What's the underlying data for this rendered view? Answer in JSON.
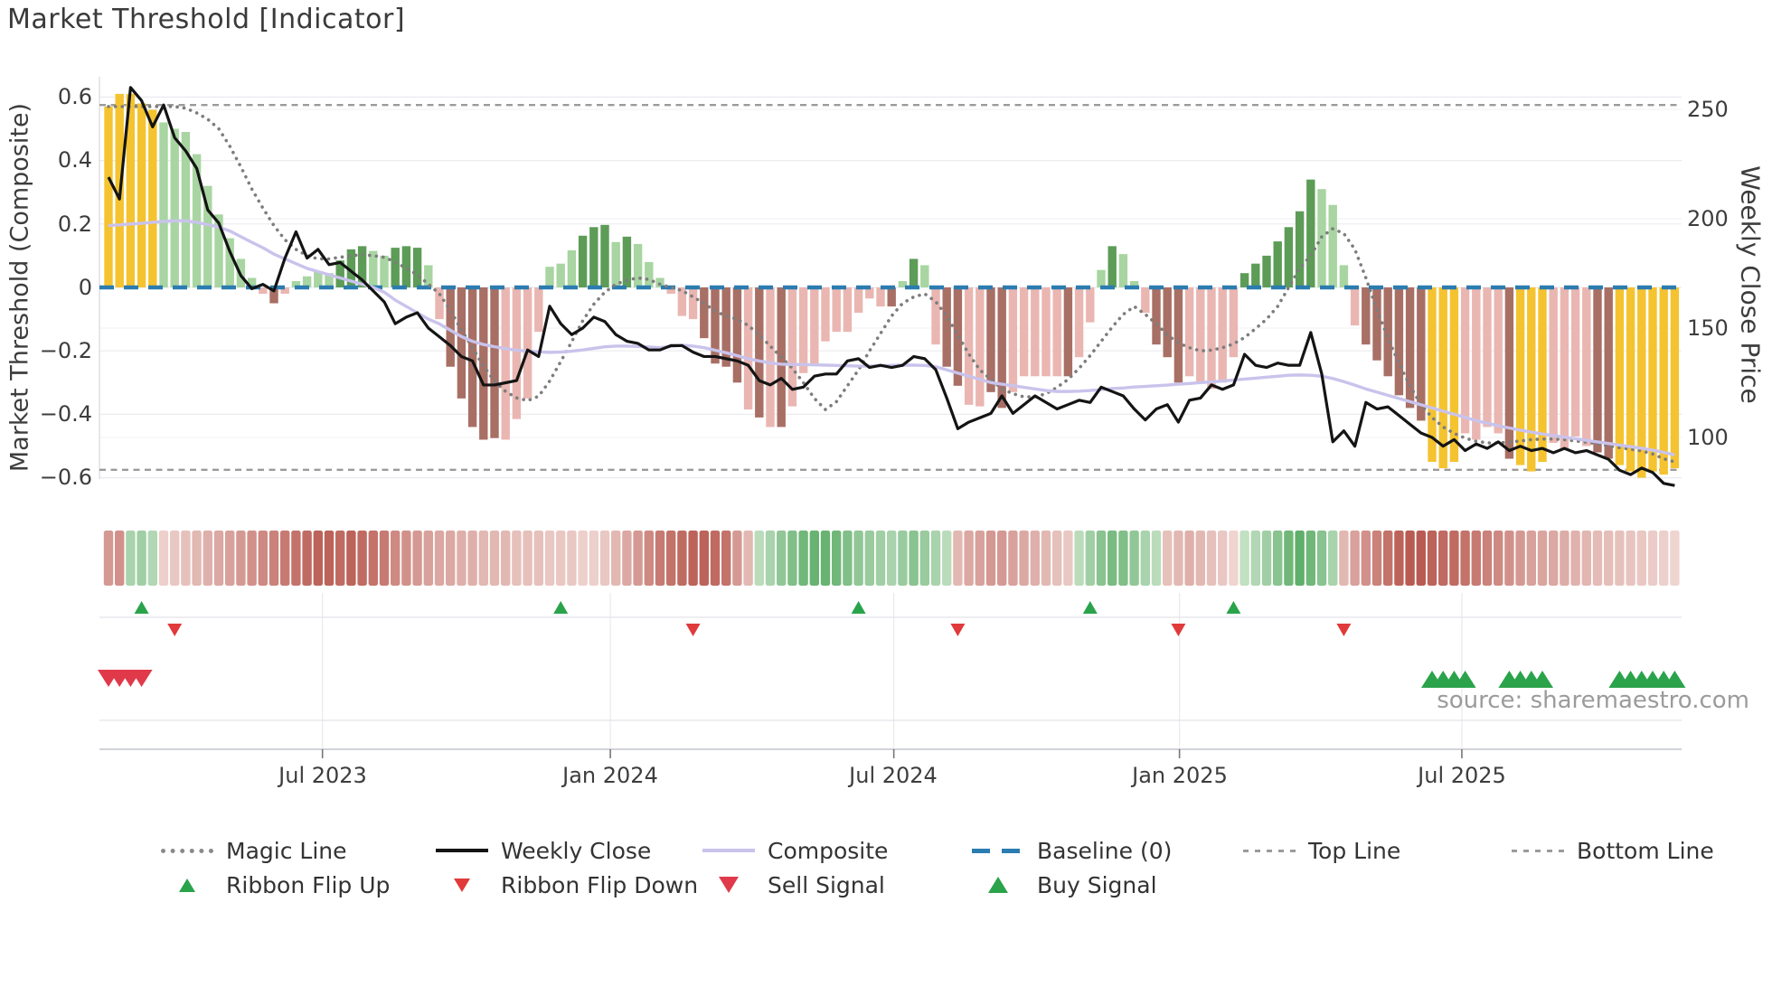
{
  "title": "Market Threshold [Indicator]",
  "source_note": "source: sharemaestro.com",
  "axes": {
    "left_label": "Market Threshold (Composite)",
    "right_label": "Weekly Close Price",
    "left_ticks": [
      "0.6",
      "0.4",
      "0.2",
      "0",
      "−0.2",
      "−0.4",
      "−0.6"
    ],
    "right_ticks": [
      "250",
      "200",
      "150",
      "100"
    ],
    "x_ticks": [
      "Jul 2023",
      "Jan 2024",
      "Jul 2024",
      "Jan 2025",
      "Jul 2025"
    ]
  },
  "legend": {
    "items": [
      {
        "label": "Magic Line"
      },
      {
        "label": "Weekly Close"
      },
      {
        "label": "Composite"
      },
      {
        "label": "Baseline (0)"
      },
      {
        "label": "Top Line"
      },
      {
        "label": "Bottom Line"
      },
      {
        "label": "Ribbon Flip Up"
      },
      {
        "label": "Ribbon Flip Down"
      },
      {
        "label": "Sell Signal"
      },
      {
        "label": "Buy Signal"
      }
    ]
  },
  "colors": {
    "bar_yellow": "#f4c32f",
    "bar_green_dark": "#5d9c57",
    "bar_green_light": "#a8d5a1",
    "bar_red_dark": "#a86f65",
    "bar_red_light": "#eab6b1",
    "close_line": "#141414",
    "composite_line": "#c9c3ec",
    "magic_line": "#7d7d7d",
    "baseline": "#2b7cb0",
    "top_bottom_line": "#9b9b9b",
    "flip_up": "#2aa34b",
    "flip_down": "#e03a3a",
    "buy": "#2aa34b",
    "sell": "#e03a4a",
    "ribbon_green_dark": "#409e4e",
    "ribbon_green_light": "#e2f0df",
    "ribbon_red_dark": "#b24c42",
    "ribbon_red_light": "#f7e6e3"
  },
  "chart_data": {
    "type": "mixed",
    "description": "Weekly composite market-threshold indicator bars (left axis) with weekly close price (right axis), magic line, composite line, baseline, top/bottom threshold lines, momentum ribbon strip and buy/sell/ribbon-flip signal markers.",
    "weeks": 143,
    "baseline": 0,
    "top_line": 0.575,
    "bottom_line": -0.575,
    "ylim_left": [
      -0.66,
      0.66
    ],
    "ylim_right": [
      70,
      265
    ],
    "x_tick_weeks": [
      19.4,
      45.5,
      71.2,
      97.1,
      122.7
    ],
    "bar_color_legend": {
      "Y": "yellow extreme",
      "G": "green dark",
      "g": "green light",
      "R": "red dark",
      "r": "red light"
    },
    "bars": [
      [
        0.57,
        "Y"
      ],
      [
        0.61,
        "Y"
      ],
      [
        0.61,
        "Y"
      ],
      [
        0.58,
        "Y"
      ],
      [
        0.56,
        "Y"
      ],
      [
        0.52,
        "g"
      ],
      [
        0.5,
        "g"
      ],
      [
        0.49,
        "g"
      ],
      [
        0.42,
        "g"
      ],
      [
        0.32,
        "g"
      ],
      [
        0.23,
        "g"
      ],
      [
        0.155,
        "g"
      ],
      [
        0.09,
        "g"
      ],
      [
        0.03,
        "g"
      ],
      [
        -0.02,
        "r"
      ],
      [
        -0.05,
        "R"
      ],
      [
        -0.02,
        "r"
      ],
      [
        0.02,
        "g"
      ],
      [
        0.035,
        "g"
      ],
      [
        0.05,
        "g"
      ],
      [
        0.045,
        "g"
      ],
      [
        0.085,
        "G"
      ],
      [
        0.12,
        "G"
      ],
      [
        0.13,
        "G"
      ],
      [
        0.115,
        "g"
      ],
      [
        0.1,
        "g"
      ],
      [
        0.125,
        "G"
      ],
      [
        0.13,
        "G"
      ],
      [
        0.125,
        "G"
      ],
      [
        0.07,
        "g"
      ],
      [
        -0.1,
        "r"
      ],
      [
        -0.25,
        "R"
      ],
      [
        -0.35,
        "R"
      ],
      [
        -0.44,
        "R"
      ],
      [
        -0.48,
        "R"
      ],
      [
        -0.475,
        "R"
      ],
      [
        -0.48,
        "r"
      ],
      [
        -0.415,
        "r"
      ],
      [
        -0.35,
        "r"
      ],
      [
        -0.14,
        "r"
      ],
      [
        0.065,
        "g"
      ],
      [
        0.075,
        "g"
      ],
      [
        0.117,
        "g"
      ],
      [
        0.163,
        "G"
      ],
      [
        0.19,
        "G"
      ],
      [
        0.197,
        "G"
      ],
      [
        0.143,
        "g"
      ],
      [
        0.16,
        "G"
      ],
      [
        0.137,
        "g"
      ],
      [
        0.08,
        "g"
      ],
      [
        0.03,
        "g"
      ],
      [
        -0.02,
        "r"
      ],
      [
        -0.09,
        "r"
      ],
      [
        -0.1,
        "r"
      ],
      [
        -0.16,
        "R"
      ],
      [
        -0.24,
        "R"
      ],
      [
        -0.25,
        "R"
      ],
      [
        -0.3,
        "R"
      ],
      [
        -0.385,
        "r"
      ],
      [
        -0.41,
        "R"
      ],
      [
        -0.44,
        "r"
      ],
      [
        -0.44,
        "R"
      ],
      [
        -0.375,
        "r"
      ],
      [
        -0.27,
        "r"
      ],
      [
        -0.24,
        "r"
      ],
      [
        -0.17,
        "r"
      ],
      [
        -0.14,
        "r"
      ],
      [
        -0.14,
        "r"
      ],
      [
        -0.08,
        "r"
      ],
      [
        -0.035,
        "r"
      ],
      [
        -0.06,
        "r"
      ],
      [
        -0.06,
        "R"
      ],
      [
        0.02,
        "g"
      ],
      [
        0.09,
        "G"
      ],
      [
        0.07,
        "g"
      ],
      [
        -0.18,
        "r"
      ],
      [
        -0.25,
        "R"
      ],
      [
        -0.31,
        "R"
      ],
      [
        -0.37,
        "r"
      ],
      [
        -0.375,
        "r"
      ],
      [
        -0.33,
        "R"
      ],
      [
        -0.38,
        "R"
      ],
      [
        -0.33,
        "r"
      ],
      [
        -0.28,
        "r"
      ],
      [
        -0.28,
        "r"
      ],
      [
        -0.28,
        "r"
      ],
      [
        -0.28,
        "r"
      ],
      [
        -0.28,
        "R"
      ],
      [
        -0.22,
        "r"
      ],
      [
        -0.11,
        "r"
      ],
      [
        0.055,
        "g"
      ],
      [
        0.13,
        "G"
      ],
      [
        0.105,
        "g"
      ],
      [
        0.02,
        "g"
      ],
      [
        -0.08,
        "r"
      ],
      [
        -0.18,
        "R"
      ],
      [
        -0.22,
        "R"
      ],
      [
        -0.3,
        "R"
      ],
      [
        -0.28,
        "r"
      ],
      [
        -0.3,
        "r"
      ],
      [
        -0.32,
        "r"
      ],
      [
        -0.3,
        "r"
      ],
      [
        -0.22,
        "r"
      ],
      [
        0.045,
        "G"
      ],
      [
        0.075,
        "G"
      ],
      [
        0.1,
        "G"
      ],
      [
        0.145,
        "G"
      ],
      [
        0.19,
        "G"
      ],
      [
        0.24,
        "G"
      ],
      [
        0.34,
        "G"
      ],
      [
        0.31,
        "g"
      ],
      [
        0.26,
        "g"
      ],
      [
        0.07,
        "g"
      ],
      [
        -0.12,
        "r"
      ],
      [
        -0.18,
        "R"
      ],
      [
        -0.23,
        "R"
      ],
      [
        -0.28,
        "R"
      ],
      [
        -0.34,
        "R"
      ],
      [
        -0.38,
        "R"
      ],
      [
        -0.42,
        "R"
      ],
      [
        -0.55,
        "Y"
      ],
      [
        -0.57,
        "Y"
      ],
      [
        -0.55,
        "Y"
      ],
      [
        -0.46,
        "r"
      ],
      [
        -0.48,
        "r"
      ],
      [
        -0.44,
        "r"
      ],
      [
        -0.46,
        "r"
      ],
      [
        -0.54,
        "R"
      ],
      [
        -0.56,
        "Y"
      ],
      [
        -0.58,
        "Y"
      ],
      [
        -0.55,
        "Y"
      ],
      [
        -0.49,
        "r"
      ],
      [
        -0.51,
        "r"
      ],
      [
        -0.47,
        "r"
      ],
      [
        -0.5,
        "r"
      ],
      [
        -0.52,
        "R"
      ],
      [
        -0.54,
        "R"
      ],
      [
        -0.56,
        "Y"
      ],
      [
        -0.58,
        "Y"
      ],
      [
        -0.6,
        "Y"
      ],
      [
        -0.58,
        "Y"
      ],
      [
        -0.59,
        "Y"
      ],
      [
        -0.57,
        "Y"
      ]
    ],
    "weekly_close": [
      219,
      209,
      260,
      254,
      242,
      252,
      237,
      231,
      223,
      204,
      198,
      185,
      174,
      168,
      170,
      167,
      182,
      194,
      182,
      186,
      179,
      180,
      176,
      172,
      167,
      162,
      152,
      155,
      157,
      150,
      146,
      142,
      137,
      135,
      124,
      124,
      125,
      126,
      140,
      137,
      160,
      152,
      147,
      150,
      155,
      153,
      147,
      144,
      143,
      140,
      140,
      142,
      142,
      139,
      137,
      137,
      136,
      135,
      133,
      126,
      124,
      127,
      122,
      123,
      128,
      129,
      129,
      135,
      136,
      132,
      133,
      132,
      133,
      137,
      136,
      131,
      118,
      104,
      107,
      109,
      111,
      119,
      111,
      115,
      119,
      116,
      113,
      115,
      117,
      116,
      123,
      121,
      119,
      113,
      108,
      113,
      115,
      107,
      117,
      118,
      124,
      122,
      124,
      138,
      133,
      132,
      134,
      133,
      133,
      148,
      129,
      98,
      103,
      96,
      116,
      113,
      114,
      110,
      106,
      102,
      100,
      96,
      99,
      94,
      97,
      95,
      98,
      94,
      96,
      94,
      95,
      93,
      95,
      93,
      94,
      92,
      90,
      85,
      83,
      86,
      84,
      79,
      78
    ],
    "magic": [
      0.57,
      0.57,
      0.57,
      0.57,
      0.57,
      0.57,
      0.57,
      0.565,
      0.55,
      0.53,
      0.5,
      0.445,
      0.38,
      0.31,
      0.25,
      0.195,
      0.15,
      0.12,
      0.1,
      0.09,
      0.09,
      0.095,
      0.1,
      0.103,
      0.1,
      0.095,
      0.08,
      0.06,
      0.04,
      0.01,
      -0.02,
      -0.073,
      -0.134,
      -0.19,
      -0.248,
      -0.295,
      -0.328,
      -0.348,
      -0.357,
      -0.343,
      -0.295,
      -0.234,
      -0.171,
      -0.105,
      -0.053,
      -0.015,
      0.01,
      0.023,
      0.03,
      0.025,
      0.01,
      0.0,
      -0.01,
      -0.03,
      -0.05,
      -0.075,
      -0.09,
      -0.1,
      -0.12,
      -0.15,
      -0.185,
      -0.22,
      -0.255,
      -0.3,
      -0.35,
      -0.385,
      -0.36,
      -0.31,
      -0.26,
      -0.2,
      -0.145,
      -0.09,
      -0.05,
      -0.03,
      -0.02,
      -0.045,
      -0.09,
      -0.15,
      -0.21,
      -0.26,
      -0.29,
      -0.32,
      -0.335,
      -0.345,
      -0.345,
      -0.335,
      -0.315,
      -0.29,
      -0.255,
      -0.215,
      -0.17,
      -0.125,
      -0.085,
      -0.06,
      -0.085,
      -0.115,
      -0.15,
      -0.175,
      -0.19,
      -0.2,
      -0.198,
      -0.19,
      -0.178,
      -0.158,
      -0.13,
      -0.1,
      -0.06,
      0.0,
      0.06,
      0.1,
      0.16,
      0.185,
      0.17,
      0.12,
      0.03,
      -0.07,
      -0.16,
      -0.24,
      -0.31,
      -0.37,
      -0.41,
      -0.44,
      -0.46,
      -0.475,
      -0.485,
      -0.49,
      -0.49,
      -0.488,
      -0.484,
      -0.48,
      -0.478,
      -0.478,
      -0.48,
      -0.484,
      -0.488,
      -0.493,
      -0.5,
      -0.505,
      -0.51,
      -0.515,
      -0.525,
      -0.54,
      -0.55
    ],
    "composite": [
      0.195,
      0.197,
      0.2,
      0.202,
      0.205,
      0.208,
      0.21,
      0.21,
      0.205,
      0.198,
      0.19,
      0.178,
      0.16,
      0.142,
      0.125,
      0.105,
      0.09,
      0.075,
      0.06,
      0.05,
      0.04,
      0.03,
      0.02,
      0.01,
      0.0,
      -0.015,
      -0.04,
      -0.06,
      -0.08,
      -0.1,
      -0.115,
      -0.135,
      -0.155,
      -0.17,
      -0.18,
      -0.187,
      -0.193,
      -0.198,
      -0.201,
      -0.203,
      -0.205,
      -0.204,
      -0.201,
      -0.197,
      -0.192,
      -0.187,
      -0.185,
      -0.185,
      -0.186,
      -0.188,
      -0.19,
      -0.186,
      -0.182,
      -0.185,
      -0.19,
      -0.198,
      -0.206,
      -0.215,
      -0.225,
      -0.232,
      -0.238,
      -0.242,
      -0.243,
      -0.243,
      -0.244,
      -0.245,
      -0.246,
      -0.247,
      -0.248,
      -0.248,
      -0.247,
      -0.246,
      -0.245,
      -0.245,
      -0.246,
      -0.25,
      -0.26,
      -0.27,
      -0.28,
      -0.29,
      -0.3,
      -0.305,
      -0.31,
      -0.315,
      -0.32,
      -0.325,
      -0.328,
      -0.328,
      -0.327,
      -0.325,
      -0.322,
      -0.319,
      -0.317,
      -0.314,
      -0.312,
      -0.31,
      -0.308,
      -0.305,
      -0.303,
      -0.3,
      -0.298,
      -0.295,
      -0.292,
      -0.289,
      -0.286,
      -0.283,
      -0.28,
      -0.277,
      -0.276,
      -0.277,
      -0.28,
      -0.287,
      -0.297,
      -0.308,
      -0.32,
      -0.33,
      -0.34,
      -0.35,
      -0.36,
      -0.37,
      -0.38,
      -0.39,
      -0.4,
      -0.41,
      -0.42,
      -0.428,
      -0.436,
      -0.443,
      -0.45,
      -0.456,
      -0.462,
      -0.467,
      -0.472,
      -0.477,
      -0.482,
      -0.487,
      -0.492,
      -0.497,
      -0.502,
      -0.507,
      -0.513,
      -0.52,
      -0.528
    ],
    "ribbon": [
      -0.5,
      -0.55,
      0.35,
      0.4,
      0.3,
      -0.15,
      -0.2,
      -0.25,
      -0.3,
      -0.35,
      -0.4,
      -0.45,
      -0.5,
      -0.55,
      -0.6,
      -0.65,
      -0.7,
      -0.75,
      -0.8,
      -0.85,
      -0.85,
      -0.8,
      -0.85,
      -0.8,
      -0.75,
      -0.7,
      -0.6,
      -0.55,
      -0.5,
      -0.45,
      -0.4,
      -0.4,
      -0.35,
      -0.35,
      -0.3,
      -0.3,
      -0.3,
      -0.25,
      -0.25,
      -0.25,
      -0.2,
      -0.2,
      -0.2,
      -0.15,
      -0.15,
      -0.2,
      -0.3,
      -0.4,
      -0.5,
      -0.6,
      -0.7,
      -0.75,
      -0.8,
      -0.85,
      -0.85,
      -0.8,
      -0.75,
      -0.5,
      -0.3,
      0.25,
      0.35,
      0.5,
      0.6,
      0.7,
      0.75,
      0.75,
      0.7,
      0.6,
      0.5,
      0.45,
      0.4,
      0.35,
      0.45,
      0.55,
      0.45,
      0.35,
      0.25,
      -0.3,
      -0.4,
      -0.45,
      -0.5,
      -0.5,
      -0.45,
      -0.4,
      -0.35,
      -0.3,
      -0.25,
      -0.2,
      0.25,
      0.4,
      0.55,
      0.65,
      0.6,
      0.5,
      0.35,
      0.25,
      -0.25,
      -0.3,
      -0.35,
      -0.3,
      -0.25,
      -0.2,
      -0.12,
      0.2,
      0.3,
      0.4,
      0.55,
      0.7,
      0.8,
      0.7,
      0.55,
      0.35,
      -0.3,
      -0.45,
      -0.55,
      -0.65,
      -0.75,
      -0.85,
      -0.9,
      -0.9,
      -0.85,
      -0.8,
      -0.8,
      -0.75,
      -0.7,
      -0.65,
      -0.6,
      -0.55,
      -0.5,
      -0.45,
      -0.42,
      -0.4,
      -0.37,
      -0.34,
      -0.31,
      -0.28,
      -0.26,
      -0.24,
      -0.22,
      -0.2,
      -0.17,
      -0.15,
      -0.12
    ],
    "signals": {
      "ribbon_flip_up_weeks": [
        3,
        41,
        68,
        89,
        102
      ],
      "ribbon_flip_down_weeks": [
        6,
        53,
        77,
        97,
        112
      ],
      "sell_weeks": [
        0,
        1,
        2,
        3
      ],
      "buy_weeks": [
        120,
        121,
        122,
        123,
        127,
        128,
        129,
        130,
        137,
        138,
        139,
        140,
        141,
        142
      ]
    }
  }
}
